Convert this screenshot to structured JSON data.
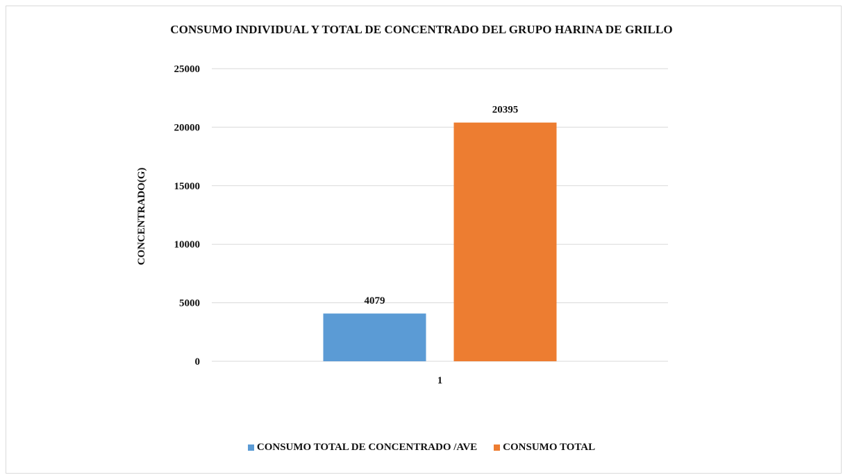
{
  "chart_data": {
    "type": "bar",
    "title": "CONSUMO INDIVIDUAL Y TOTAL DE CONCENTRADO DEL GRUPO HARINA DE GRILLO",
    "xlabel": "",
    "ylabel": "CONCENTRADO(G)",
    "categories": [
      "1"
    ],
    "ylim": [
      0,
      25000
    ],
    "yticks": [
      "0",
      "5000",
      "10000",
      "15000",
      "20000",
      "25000"
    ],
    "grid": true,
    "legend_position": "bottom",
    "series": [
      {
        "name": "CONSUMO TOTAL DE CONCENTRADO /AVE",
        "values": [
          4079
        ],
        "color": "#5b9bd5"
      },
      {
        "name": "CONSUMO TOTAL",
        "values": [
          20395
        ],
        "color": "#ed7d31"
      }
    ]
  }
}
